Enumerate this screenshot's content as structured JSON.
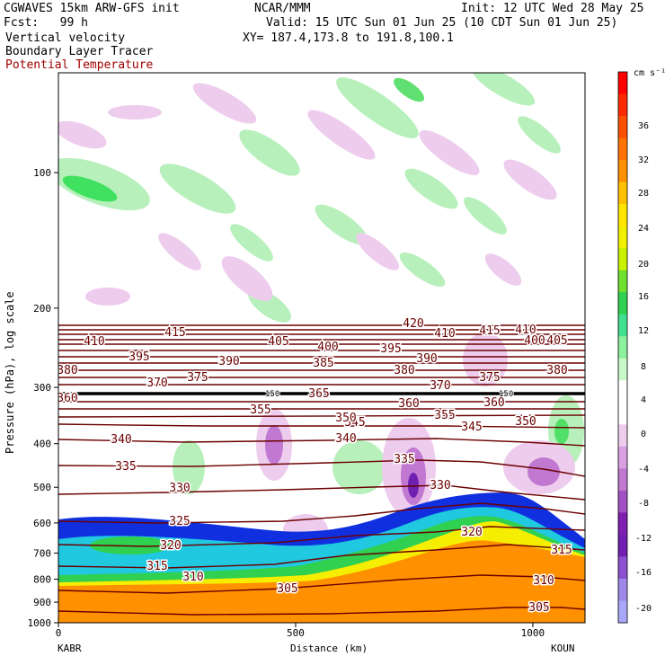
{
  "header": {
    "model": "CGWAVES 15km ARW-GFS init",
    "fcst_label": "Fcst:",
    "fcst_value": "99 h",
    "field1": "Vertical velocity",
    "field2": "Boundary Layer Tracer",
    "field3": "Potential Temperature",
    "org": "NCAR/MMM",
    "init": "Init: 12 UTC Wed 28 May 25",
    "valid": "Valid: 15 UTC Sun 01 Jun 25 (10 CDT Sun 01 Jun 25)",
    "xy": "XY= 187.4,173.8 to 191.8,100.1"
  },
  "colors": {
    "theta": "#6b0000",
    "tracer_orange": "#ff9000",
    "tracer_yellow": "#f5ee00",
    "tracer_green": "#30d050",
    "tracer_cyan": "#20c8e0",
    "tracer_blue": "#1030e0",
    "up_green": "#8cf09c",
    "down_purple": "#d8a0e0"
  },
  "chart_data": {
    "type": "cross-section",
    "ylabel": "Pressure (hPa), log scale",
    "xlabel": "Distance (km)",
    "y_scale": "log",
    "ylim": [
      1000,
      60
    ],
    "xlim": [
      0,
      1110
    ],
    "y_ticks": [
      100,
      200,
      300,
      400,
      500,
      600,
      700,
      800,
      900,
      1000
    ],
    "x_ticks": [
      0,
      500,
      1000
    ],
    "left_station": "KABR",
    "right_station": "KOUN",
    "colorbar": {
      "units": "cm s⁻¹",
      "labels": [
        "36",
        "32",
        "28",
        "24",
        "20",
        "16",
        "12",
        "8",
        "4",
        "0",
        "-4",
        "-8",
        "-12",
        "-16",
        "-20"
      ],
      "colors": [
        "#ff0000",
        "#ff2a00",
        "#ff5000",
        "#ff7400",
        "#ff9000",
        "#ffc000",
        "#ffe600",
        "#f0f000",
        "#c8f000",
        "#70e030",
        "#30d050",
        "#40e090",
        "#8cf09c",
        "#c8f8c8",
        "#ffffff",
        "#ffffff",
        "#eeccee",
        "#d8a0e0",
        "#c078d0",
        "#a050c0",
        "#8020b0",
        "#7020b0",
        "#8c50d0",
        "#9e88e8",
        "#a8a8f8"
      ]
    },
    "theta_contours": [
      {
        "value": 305,
        "label": "305"
      },
      {
        "value": 310,
        "label": "310"
      },
      {
        "value": 315,
        "label": "315"
      },
      {
        "value": 320,
        "label": "320"
      },
      {
        "value": 325,
        "label": "325"
      },
      {
        "value": 330,
        "label": "330"
      },
      {
        "value": 335,
        "label": "335"
      },
      {
        "value": 340,
        "label": "340"
      },
      {
        "value": 345,
        "label": "345"
      },
      {
        "value": 350,
        "label": "350"
      },
      {
        "value": 355,
        "label": "355"
      },
      {
        "value": 360,
        "label": "360"
      },
      {
        "value": 365,
        "label": "365"
      },
      {
        "value": 370,
        "label": "370"
      },
      {
        "value": 375,
        "label": "375"
      },
      {
        "value": 380,
        "label": "380"
      },
      {
        "value": 385,
        "label": "385"
      },
      {
        "value": 390,
        "label": "390"
      },
      {
        "value": 395,
        "label": "395"
      },
      {
        "value": 400,
        "label": "400"
      },
      {
        "value": 405,
        "label": "405"
      },
      {
        "value": 410,
        "label": "410"
      },
      {
        "value": 415,
        "label": "415"
      },
      {
        "value": 420,
        "label": "420"
      }
    ],
    "reference_level": {
      "label": "150"
    }
  }
}
